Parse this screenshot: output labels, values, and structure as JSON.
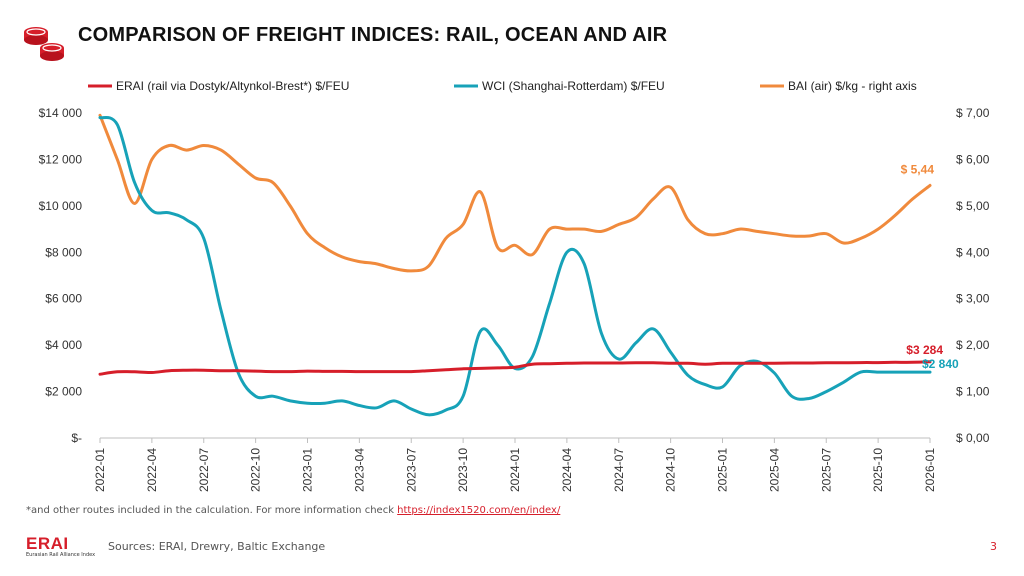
{
  "header": {
    "title": "COMPARISON OF FREIGHT INDICES: RAIL, OCEAN AND AIR",
    "icon": "coins-icon"
  },
  "colors": {
    "erai": "#d61e2a",
    "wci": "#17a2b8",
    "bai": "#f08a3c",
    "axis": "#333333",
    "grid": "#d9d9d9"
  },
  "chart_data": {
    "type": "line",
    "x": [
      "2022-01",
      "2022-02",
      "2022-03",
      "2022-04",
      "2022-05",
      "2022-06",
      "2022-07",
      "2022-08",
      "2022-09",
      "2022-10",
      "2022-11",
      "2022-12",
      "2023-01",
      "2023-02",
      "2023-03",
      "2023-04",
      "2023-05",
      "2023-06",
      "2023-07",
      "2023-08",
      "2023-09",
      "2023-10",
      "2023-11",
      "2023-12",
      "2024-01",
      "2024-02",
      "2024-03",
      "2024-04",
      "2024-05",
      "2024-06",
      "2024-07",
      "2024-08",
      "2024-09",
      "2024-10",
      "2024-11",
      "2024-12",
      "2025-01",
      "2025-02",
      "2025-03",
      "2025-04",
      "2025-05",
      "2025-06",
      "2025-07",
      "2025-08",
      "2025-09",
      "2025-10",
      "2025-11",
      "2025-12",
      "2026-01"
    ],
    "x_ticks": [
      "2022-01",
      "2022-04",
      "2022-07",
      "2022-10",
      "2023-01",
      "2023-04",
      "2023-07",
      "2023-10",
      "2024-01",
      "2024-04",
      "2024-07",
      "2024-10",
      "2025-01",
      "2025-04",
      "2025-07",
      "2025-10",
      "2026-01"
    ],
    "y_left": {
      "ticks": [
        "$-",
        "$2 000",
        "$4 000",
        "$6 000",
        "$8 000",
        "$10 000",
        "$12 000",
        "$14 000"
      ],
      "range": [
        0,
        14000
      ]
    },
    "y_right": {
      "ticks": [
        "$ 0,00",
        "$ 1,00",
        "$ 2,00",
        "$ 3,00",
        "$ 4,00",
        "$ 5,00",
        "$ 6,00",
        "$ 7,00"
      ],
      "range": [
        0,
        7
      ]
    },
    "series": [
      {
        "name": "ERAI (rail via Dostyk/Altynkol-Brest*)  $/FEU",
        "axis": "left",
        "values": [
          2750,
          2850,
          2850,
          2820,
          2900,
          2920,
          2920,
          2900,
          2900,
          2880,
          2860,
          2860,
          2880,
          2870,
          2870,
          2860,
          2860,
          2860,
          2860,
          2900,
          2940,
          2980,
          3000,
          3020,
          3050,
          3180,
          3200,
          3220,
          3230,
          3230,
          3230,
          3240,
          3240,
          3220,
          3220,
          3180,
          3220,
          3220,
          3220,
          3220,
          3230,
          3230,
          3240,
          3240,
          3250,
          3250,
          3260,
          3260,
          3284
        ],
        "end_label": "$3 284"
      },
      {
        "name": "WCI (Shanghai-Rotterdam) $/FEU",
        "axis": "left",
        "values": [
          13800,
          13500,
          11000,
          9800,
          9700,
          9400,
          8600,
          5500,
          2800,
          1800,
          1800,
          1600,
          1500,
          1500,
          1600,
          1400,
          1300,
          1600,
          1250,
          1000,
          1200,
          1800,
          4600,
          4000,
          3000,
          3500,
          5800,
          8000,
          7500,
          4500,
          3400,
          4100,
          4700,
          3700,
          2700,
          2300,
          2200,
          3100,
          3300,
          2800,
          1800,
          1700,
          2000,
          2400,
          2840,
          2840,
          2840,
          2840,
          2840
        ],
        "end_label": "$2 840"
      },
      {
        "name": "BAI (air) $/kg - right axis",
        "axis": "right",
        "values": [
          6.95,
          6.0,
          5.05,
          6.0,
          6.3,
          6.2,
          6.3,
          6.2,
          5.9,
          5.6,
          5.5,
          5.0,
          4.4,
          4.1,
          3.9,
          3.8,
          3.75,
          3.65,
          3.6,
          3.7,
          4.3,
          4.6,
          5.3,
          4.1,
          4.15,
          3.95,
          4.5,
          4.5,
          4.5,
          4.45,
          4.6,
          4.75,
          5.15,
          5.4,
          4.7,
          4.4,
          4.4,
          4.5,
          4.45,
          4.4,
          4.35,
          4.35,
          4.4,
          4.2,
          4.3,
          4.5,
          4.8,
          5.15,
          5.44
        ],
        "end_label": "$ 5,44"
      }
    ],
    "grid": false,
    "legend": "top"
  },
  "footer": {
    "footnote_prefix": "*and other routes included in the calculation. For more information check ",
    "footnote_link": "https://index1520.com/en/index/",
    "brand_name": "ERAI",
    "brand_sub": "Eurasian Rail Alliance Index",
    "sources": "Sources: ERAI, Drewry, Baltic Exchange",
    "page_number": "3"
  }
}
